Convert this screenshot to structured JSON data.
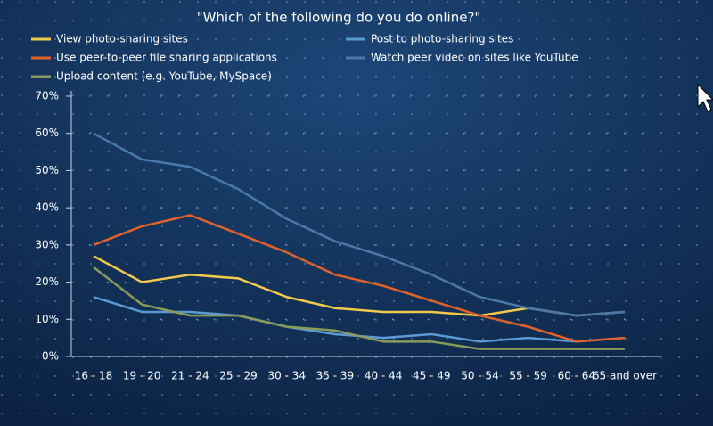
{
  "chart_data": {
    "type": "line",
    "title": "\"Which of the following do you do online?\"",
    "categories": [
      "16 - 18",
      "19 - 20",
      "21 - 24",
      "25 - 29",
      "30 - 34",
      "35 - 39",
      "40 - 44",
      "45 - 49",
      "50 - 54",
      "55 - 59",
      "60 - 64",
      "65 and over"
    ],
    "series": [
      {
        "name": "View photo-sharing sites",
        "color": "#f2c94c",
        "values": [
          27,
          20,
          22,
          21,
          16,
          13,
          12,
          12,
          11,
          13,
          11,
          12
        ]
      },
      {
        "name": "Post to photo-sharing sites",
        "color": "#5b9bd5",
        "values": [
          16,
          12,
          12,
          11,
          8,
          6,
          5,
          6,
          4,
          5,
          4,
          5
        ]
      },
      {
        "name": "Use peer-to-peer file sharing applications",
        "color": "#e0622a",
        "values": [
          30,
          35,
          38,
          33,
          28,
          22,
          19,
          15,
          11,
          8,
          4,
          5
        ]
      },
      {
        "name": "Watch peer video on sites like YouTube",
        "color": "#4a78ab",
        "values": [
          60,
          53,
          51,
          45,
          37,
          31,
          27,
          22,
          16,
          13,
          11,
          12
        ]
      },
      {
        "name": "Upload content (e.g. YouTube, MySpace)",
        "color": "#8a9a5b",
        "values": [
          24,
          14,
          11,
          11,
          8,
          7,
          4,
          4,
          2,
          2,
          2,
          2
        ]
      }
    ],
    "ylim": [
      0,
      70
    ],
    "yticks": [
      {
        "value": 0,
        "label": "0%"
      },
      {
        "value": 10,
        "label": "10%"
      },
      {
        "value": 20,
        "label": "20%"
      },
      {
        "value": 30,
        "label": "30%"
      },
      {
        "value": 40,
        "label": "40%"
      },
      {
        "value": 50,
        "label": "50%"
      },
      {
        "value": 60,
        "label": "60%"
      },
      {
        "value": 70,
        "label": "70%"
      }
    ],
    "grid": true
  }
}
